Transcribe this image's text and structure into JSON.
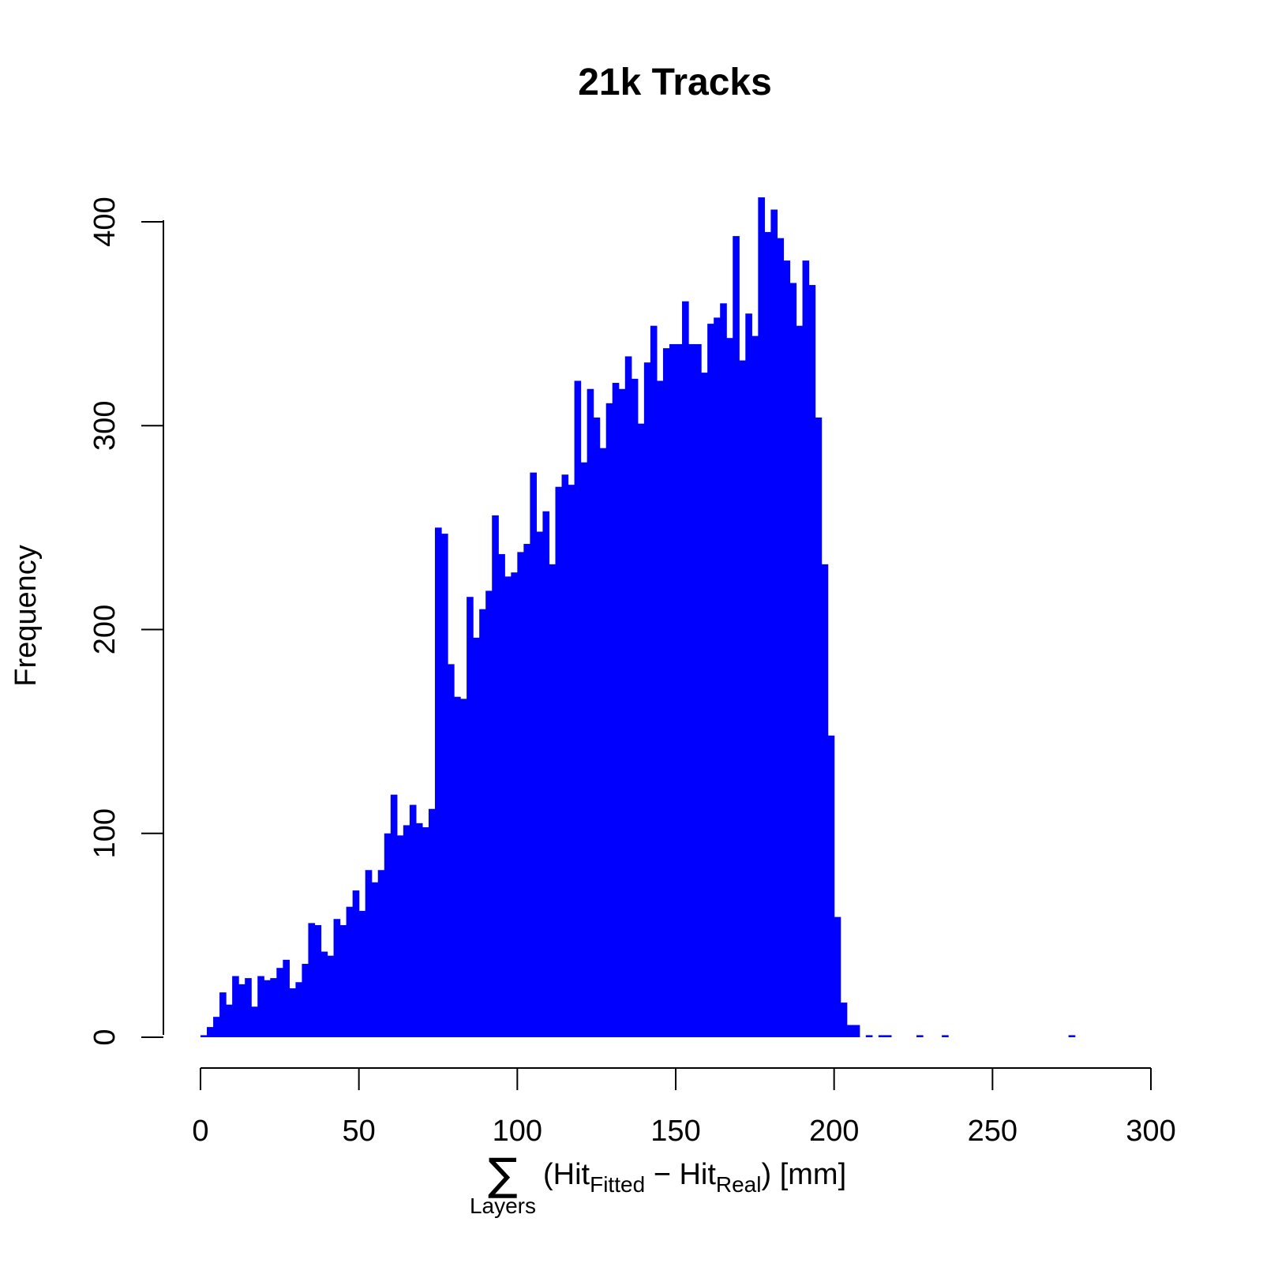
{
  "chart_data": {
    "type": "bar",
    "title": "21k Tracks",
    "ylabel": "Frequency",
    "xlabel": {
      "sum_symbol": "∑",
      "sum_subscript": "Layers",
      "open_paren": "(Hit",
      "sub1": "Fitted",
      "minus": " − Hit",
      "sub2": "Real",
      "close_and_unit": ")  [mm]"
    },
    "xlim": [
      0,
      300
    ],
    "ylim": [
      0,
      400
    ],
    "x_ticks": [
      0,
      50,
      100,
      150,
      200,
      250,
      300
    ],
    "y_ticks": [
      0,
      100,
      200,
      300,
      400
    ],
    "bin_width": 2,
    "bin_start": 0,
    "bar_color": "#0000ff",
    "values": [
      1,
      5,
      10,
      22,
      16,
      30,
      26,
      29,
      15,
      30,
      28,
      29,
      34,
      38,
      24,
      27,
      36,
      56,
      55,
      42,
      40,
      58,
      55,
      64,
      72,
      62,
      82,
      76,
      82,
      100,
      119,
      99,
      104,
      114,
      105,
      103,
      112,
      250,
      247,
      183,
      167,
      166,
      216,
      196,
      210,
      219,
      256,
      237,
      226,
      228,
      238,
      242,
      277,
      248,
      258,
      232,
      270,
      276,
      271,
      322,
      282,
      318,
      304,
      289,
      311,
      321,
      318,
      334,
      323,
      301,
      331,
      349,
      322,
      338,
      340,
      340,
      361,
      340,
      340,
      326,
      350,
      353,
      360,
      343,
      393,
      332,
      355,
      344,
      412,
      395,
      406,
      392,
      381,
      370,
      349,
      381,
      369,
      304,
      232,
      148,
      59,
      17,
      6,
      6,
      0,
      1,
      0,
      1,
      1,
      0,
      0,
      0,
      0,
      1,
      0,
      0,
      0,
      1,
      0,
      0,
      0,
      0,
      0,
      0,
      0,
      0,
      0,
      0,
      0,
      0,
      0,
      0,
      0,
      0,
      0,
      0,
      0,
      1
    ]
  }
}
